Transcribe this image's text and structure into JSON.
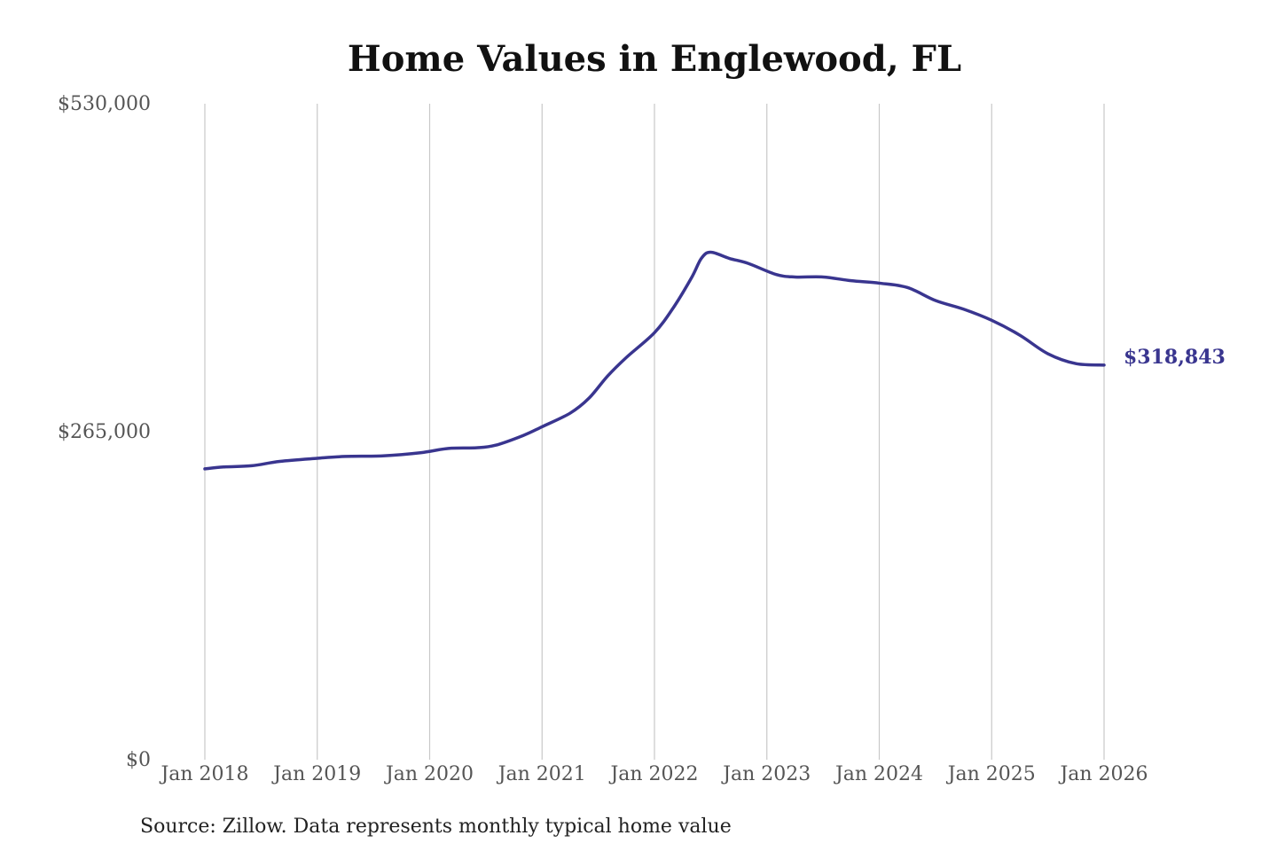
{
  "chart_data": {
    "type": "line",
    "title": "Home Values in Englewood, FL",
    "ylim": [
      0,
      530000
    ],
    "y_ticks": [
      "$530,000",
      "$265,000",
      "$0"
    ],
    "y_tick_values": [
      530000,
      265000,
      0
    ],
    "x_ticks": [
      "Jan 2018",
      "Jan 2019",
      "Jan 2020",
      "Jan 2021",
      "Jan 2022",
      "Jan 2023",
      "Jan 2024",
      "Jan 2025",
      "Jan 2026"
    ],
    "x_tick_dates": [
      "2018-01",
      "2019-01",
      "2020-01",
      "2021-01",
      "2022-01",
      "2023-01",
      "2024-01",
      "2025-01",
      "2026-01"
    ],
    "grid": "vertical",
    "series": [
      {
        "color": "#39358f",
        "points": [
          {
            "x": "2018-01",
            "y": 235000
          },
          {
            "x": "2018-03",
            "y": 236500
          },
          {
            "x": "2018-06",
            "y": 237500
          },
          {
            "x": "2018-09",
            "y": 241000
          },
          {
            "x": "2019-01",
            "y": 243500
          },
          {
            "x": "2019-04",
            "y": 245000
          },
          {
            "x": "2019-08",
            "y": 245500
          },
          {
            "x": "2019-12",
            "y": 248000
          },
          {
            "x": "2020-03",
            "y": 251500
          },
          {
            "x": "2020-06",
            "y": 252000
          },
          {
            "x": "2020-08",
            "y": 254000
          },
          {
            "x": "2020-11",
            "y": 262000
          },
          {
            "x": "2021-01",
            "y": 269000
          },
          {
            "x": "2021-04",
            "y": 280000
          },
          {
            "x": "2021-06",
            "y": 292000
          },
          {
            "x": "2021-08",
            "y": 310000
          },
          {
            "x": "2021-10",
            "y": 325000
          },
          {
            "x": "2022-01",
            "y": 345000
          },
          {
            "x": "2022-03",
            "y": 365000
          },
          {
            "x": "2022-05",
            "y": 390000
          },
          {
            "x": "2022-06",
            "y": 405000
          },
          {
            "x": "2022-07",
            "y": 410000
          },
          {
            "x": "2022-09",
            "y": 405000
          },
          {
            "x": "2022-11",
            "y": 401000
          },
          {
            "x": "2023-02",
            "y": 392000
          },
          {
            "x": "2023-04",
            "y": 390000
          },
          {
            "x": "2023-07",
            "y": 390000
          },
          {
            "x": "2023-10",
            "y": 387000
          },
          {
            "x": "2024-01",
            "y": 385000
          },
          {
            "x": "2024-04",
            "y": 381500
          },
          {
            "x": "2024-07",
            "y": 371000
          },
          {
            "x": "2024-10",
            "y": 364000
          },
          {
            "x": "2025-01",
            "y": 355000
          },
          {
            "x": "2025-04",
            "y": 343000
          },
          {
            "x": "2025-07",
            "y": 328000
          },
          {
            "x": "2025-10",
            "y": 320000
          },
          {
            "x": "2026-01",
            "y": 318843
          }
        ],
        "end_label": "$318,843"
      }
    ],
    "source": "Source: Zillow. Data represents monthly typical home value"
  }
}
